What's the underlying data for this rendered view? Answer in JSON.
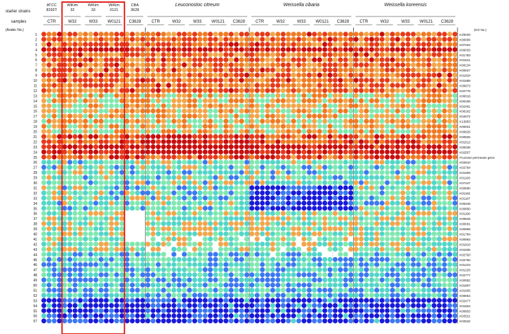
{
  "header": {
    "row_label_starter": "starter strains",
    "row_label_samples": "samples",
    "row_number_header": "(Arabic No.)",
    "ko_header": "(KO No.)"
  },
  "chart_data": {
    "type": "heatmap",
    "strain_groups": [
      {
        "name": "ATCC\n8293T",
        "italic": false,
        "samples": [
          "CTR"
        ]
      },
      {
        "name": "WiKim\n32",
        "italic": false,
        "samples": [
          "W32"
        ],
        "highlight": true
      },
      {
        "name": "WiKim\n33",
        "italic": false,
        "samples": [
          "W33"
        ],
        "highlight": true
      },
      {
        "name": "WiKim\n0121",
        "italic": false,
        "samples": [
          "W0121"
        ],
        "highlight": true
      },
      {
        "name": "CBA\n3628",
        "italic": false,
        "samples": [
          "C3628"
        ]
      },
      {
        "name": "Leuconostoc citreum",
        "italic": true,
        "samples": [
          "CTR",
          "W32",
          "W33",
          "W0121",
          "C3628"
        ]
      },
      {
        "name": "Weissella cibaria",
        "italic": true,
        "samples": [
          "CTR",
          "W32",
          "W33",
          "W0121",
          "C3628"
        ]
      },
      {
        "name": "Weissella koreensis",
        "italic": true,
        "samples": [
          "CTR",
          "W32",
          "W33",
          "W0121",
          "C3628"
        ]
      }
    ],
    "rows": [
      "1",
      "2",
      "3",
      "4",
      "5",
      "6",
      "7",
      "8",
      "9",
      "10",
      "11",
      "12",
      "13",
      "14",
      "15",
      "16",
      "17",
      "18",
      "19",
      "20",
      "21",
      "22",
      "23",
      "24",
      "25",
      "26",
      "27",
      "28",
      "29",
      "30",
      "31",
      "32",
      "33",
      "34",
      "35",
      "36",
      "37",
      "38",
      "39",
      "40",
      "41",
      "42",
      "43",
      "44",
      "45",
      "46",
      "47",
      "48",
      "49",
      "50",
      "51",
      "52",
      "53",
      "54",
      "55",
      "56",
      "57"
    ],
    "ko_labels": [
      "K25026",
      "K00006",
      "K07404",
      "K00033",
      "K01783",
      "K01621",
      "K06134",
      "K00627",
      "K01834",
      "K01689",
      "K00873",
      "K02778",
      "K00016",
      "K00156",
      "K02491",
      "K06162",
      "K04072",
      "K13953",
      "K00001",
      "K00625",
      "K00925",
      "K01512",
      "K00036",
      "K02557",
      "Fructose permease gene",
      "K02810",
      "K02794",
      "K01809",
      "K01193",
      "K07437",
      "K00890",
      "K01182",
      "K01187",
      "K05349",
      "K00850",
      "K01190",
      "K00845",
      "K00001",
      "K00969",
      "K01784",
      "K00963",
      "K01810",
      "K01835",
      "K02793",
      "K02760",
      "K01223",
      "K01226",
      "K02777",
      "K00882",
      "K01807",
      "K01805",
      "K00854",
      "K02477",
      "K01804",
      "K00853",
      "K02521",
      "K02532"
    ],
    "color_scale": [
      "#1a1ad9",
      "#3c78f0",
      "#52d6c8",
      "#7fe8b0",
      "#f2a64a",
      "#f07a22",
      "#e63a1a",
      "#c80f0f"
    ],
    "scale_note": "values normalized 0 (blue, low) to 1 (red, high)"
  }
}
